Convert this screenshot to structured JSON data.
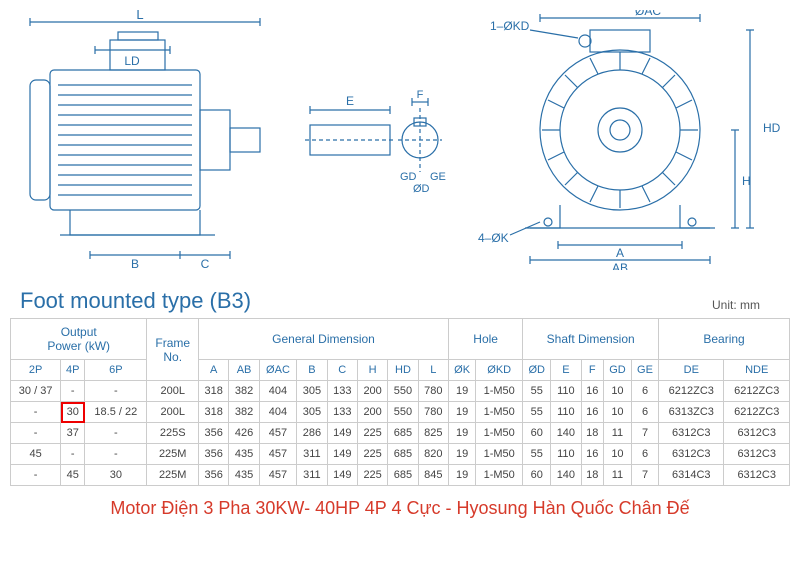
{
  "title": "Foot mounted type (B3)",
  "unit_label": "Unit: mm",
  "diagram_labels": {
    "side": {
      "L": "L",
      "LD": "LD",
      "B": "B",
      "C": "C"
    },
    "shaft": {
      "E": "E",
      "F": "F",
      "GD": "GD",
      "OD": "ØD",
      "GE": "GE"
    },
    "front": {
      "OAC": "ØAC",
      "OKD": "1–ØKD",
      "OK": "4–ØK",
      "A": "A",
      "AB": "AB",
      "HD": "HD",
      "H": "H"
    }
  },
  "table": {
    "groups": [
      {
        "label": "Output Power (kW)",
        "span": 3
      },
      {
        "label": "Frame No.",
        "span": 1
      },
      {
        "label": "General Dimension",
        "span": 8
      },
      {
        "label": "Hole",
        "span": 2
      },
      {
        "label": "Shaft Dimension",
        "span": 5
      },
      {
        "label": "Bearing",
        "span": 2
      }
    ],
    "cols": [
      "2P",
      "4P",
      "6P",
      "",
      "A",
      "AB",
      "ØAC",
      "B",
      "C",
      "H",
      "HD",
      "L",
      "ØK",
      "ØKD",
      "ØD",
      "E",
      "F",
      "GD",
      "GE",
      "DE",
      "NDE"
    ],
    "rows": [
      [
        "30 / 37",
        "-",
        "-",
        "200L",
        "318",
        "382",
        "404",
        "305",
        "133",
        "200",
        "550",
        "780",
        "19",
        "1-M50",
        "55",
        "110",
        "16",
        "10",
        "6",
        "6212ZC3",
        "6212ZC3"
      ],
      [
        "-",
        "30",
        "18.5 / 22",
        "200L",
        "318",
        "382",
        "404",
        "305",
        "133",
        "200",
        "550",
        "780",
        "19",
        "1-M50",
        "55",
        "110",
        "16",
        "10",
        "6",
        "6313ZC3",
        "6212ZC3"
      ],
      [
        "-",
        "37",
        "-",
        "225S",
        "356",
        "426",
        "457",
        "286",
        "149",
        "225",
        "685",
        "825",
        "19",
        "1-M50",
        "60",
        "140",
        "18",
        "11",
        "7",
        "6312C3",
        "6312C3"
      ],
      [
        "45",
        "-",
        "-",
        "225M",
        "356",
        "435",
        "457",
        "311",
        "149",
        "225",
        "685",
        "820",
        "19",
        "1-M50",
        "55",
        "110",
        "16",
        "10",
        "6",
        "6312C3",
        "6312C3"
      ],
      [
        "-",
        "45",
        "30",
        "225M",
        "356",
        "435",
        "457",
        "311",
        "149",
        "225",
        "685",
        "845",
        "19",
        "1-M50",
        "60",
        "140",
        "18",
        "11",
        "7",
        "6314C3",
        "6312C3"
      ]
    ],
    "highlight": {
      "row": 1,
      "col": 1
    }
  },
  "caption": "Motor Điện 3 Pha 30KW- 40HP 4P 4 Cực - Hyosung Hàn Quốc Chân Đế",
  "colors": {
    "line": "#2a6fa8",
    "dim": "#2a6fa8",
    "caption": "#d63a2a"
  }
}
